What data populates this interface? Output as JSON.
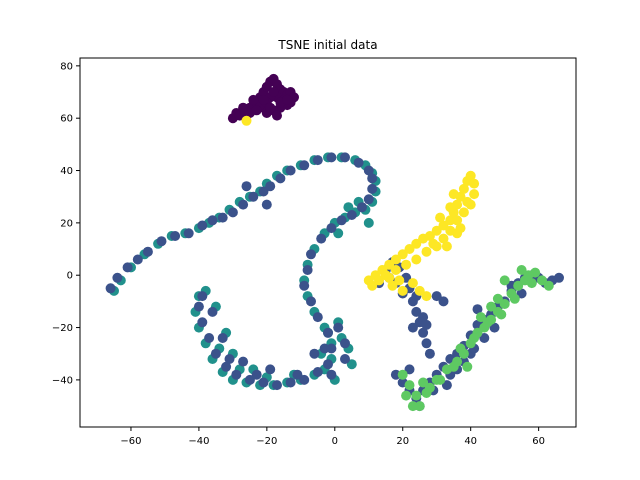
{
  "chart_data": {
    "type": "scatter",
    "title": "TSNE initial data",
    "xlabel": "",
    "ylabel": "",
    "xlim": [
      -75,
      71
    ],
    "ylim": [
      -58,
      83
    ],
    "xticks": [
      -60,
      -40,
      -20,
      0,
      20,
      40,
      60
    ],
    "yticks": [
      -40,
      -20,
      0,
      20,
      40,
      60,
      80
    ],
    "xtick_labels": [
      "−60",
      "−40",
      "−20",
      "0",
      "20",
      "40",
      "60"
    ],
    "ytick_labels": [
      "−40",
      "−20",
      "0",
      "20",
      "40",
      "60",
      "80"
    ],
    "grid": false,
    "series": [
      {
        "color": "#440154",
        "points": [
          [
            -30,
            60
          ],
          [
            -29,
            62
          ],
          [
            -27,
            63
          ],
          [
            -25,
            64
          ],
          [
            -24,
            65
          ],
          [
            -23,
            66
          ],
          [
            -22,
            68
          ],
          [
            -21,
            70
          ],
          [
            -20,
            72
          ],
          [
            -19,
            74
          ],
          [
            -18,
            75
          ],
          [
            -17,
            73
          ],
          [
            -16,
            71
          ],
          [
            -15,
            70
          ],
          [
            -14,
            69
          ],
          [
            -13,
            70
          ],
          [
            -12,
            68
          ],
          [
            -13,
            66
          ],
          [
            -14,
            65
          ],
          [
            -16,
            64
          ],
          [
            -18,
            63
          ],
          [
            -20,
            62
          ],
          [
            -21,
            64
          ],
          [
            -22,
            65
          ],
          [
            -26,
            61
          ],
          [
            -28,
            61
          ],
          [
            -25,
            62
          ],
          [
            -17,
            68
          ],
          [
            -19,
            68
          ],
          [
            -15,
            67
          ],
          [
            -24,
            67
          ],
          [
            -20,
            66
          ],
          [
            -18,
            70
          ],
          [
            -16,
            66
          ],
          [
            -14,
            67
          ],
          [
            -21,
            67
          ],
          [
            -23,
            63
          ],
          [
            -27,
            64
          ],
          [
            -19,
            64
          ],
          [
            -17,
            61
          ]
        ]
      },
      {
        "color": "#21918c",
        "points": [
          [
            -65,
            -6
          ],
          [
            -63,
            -2
          ],
          [
            -60,
            3
          ],
          [
            -56,
            8
          ],
          [
            -52,
            12
          ],
          [
            -48,
            15
          ],
          [
            -44,
            16
          ],
          [
            -40,
            18
          ],
          [
            -37,
            20
          ],
          [
            -34,
            22
          ],
          [
            -31,
            25
          ],
          [
            -28,
            28
          ],
          [
            -25,
            30
          ],
          [
            -22,
            32
          ],
          [
            -20,
            35
          ],
          [
            -17,
            38
          ],
          [
            -14,
            40
          ],
          [
            -10,
            42
          ],
          [
            -6,
            44
          ],
          [
            -2,
            45
          ],
          [
            2,
            45
          ],
          [
            6,
            44
          ],
          [
            9,
            42
          ],
          [
            11,
            39
          ],
          [
            12,
            36
          ],
          [
            12,
            32
          ],
          [
            11,
            28
          ],
          [
            9,
            25
          ],
          [
            6,
            24
          ],
          [
            3,
            22
          ],
          [
            0,
            20
          ],
          [
            -3,
            16
          ],
          [
            -6,
            10
          ],
          [
            -8,
            4
          ],
          [
            -9,
            -2
          ],
          [
            -8,
            -8
          ],
          [
            -6,
            -14
          ],
          [
            -3,
            -20
          ],
          [
            -1,
            -26
          ],
          [
            -1,
            -32
          ],
          [
            -3,
            -36
          ],
          [
            -6,
            -38
          ],
          [
            -10,
            -40
          ],
          [
            -14,
            -41
          ],
          [
            -18,
            -42
          ],
          [
            -22,
            -42
          ],
          [
            -26,
            -41
          ],
          [
            -30,
            -40
          ],
          [
            -33,
            -37
          ],
          [
            -36,
            -32
          ],
          [
            -38,
            -26
          ],
          [
            -40,
            -20
          ],
          [
            -41,
            -14
          ],
          [
            -40,
            -8
          ],
          [
            -38,
            -6
          ],
          [
            -35,
            -12
          ],
          [
            -32,
            -22
          ],
          [
            -30,
            -30
          ],
          [
            -24,
            -36
          ],
          [
            -12,
            -38
          ],
          [
            -4,
            -30
          ],
          [
            -2,
            -22
          ],
          [
            1,
            -18
          ],
          [
            2,
            -24
          ],
          [
            4,
            -28
          ],
          [
            5,
            -34
          ],
          [
            0,
            -40
          ],
          [
            -20,
            -39
          ],
          [
            -28,
            -36
          ],
          [
            -34,
            -28
          ],
          [
            4,
            26
          ],
          [
            7,
            28
          ],
          [
            10,
            20
          ],
          [
            1,
            16
          ]
        ]
      },
      {
        "color": "#3b528b",
        "points": [
          [
            -66,
            -5
          ],
          [
            -64,
            -1
          ],
          [
            -61,
            3
          ],
          [
            -58,
            6
          ],
          [
            -55,
            9
          ],
          [
            -51,
            13
          ],
          [
            -47,
            15
          ],
          [
            -43,
            16
          ],
          [
            -39,
            19
          ],
          [
            -36,
            21
          ],
          [
            -33,
            22
          ],
          [
            -30,
            24
          ],
          [
            -27,
            27
          ],
          [
            -24,
            30
          ],
          [
            -21,
            32
          ],
          [
            -19,
            34
          ],
          [
            -16,
            37
          ],
          [
            -13,
            40
          ],
          [
            -9,
            42
          ],
          [
            -5,
            44
          ],
          [
            -1,
            45
          ],
          [
            3,
            45
          ],
          [
            7,
            43
          ],
          [
            10,
            40
          ],
          [
            11,
            37
          ],
          [
            11,
            33
          ],
          [
            10,
            29
          ],
          [
            8,
            26
          ],
          [
            5,
            23
          ],
          [
            2,
            21
          ],
          [
            -1,
            18
          ],
          [
            -4,
            14
          ],
          [
            -7,
            8
          ],
          [
            -8,
            2
          ],
          [
            -9,
            -4
          ],
          [
            -7,
            -10
          ],
          [
            -5,
            -16
          ],
          [
            -2,
            -22
          ],
          [
            -1,
            -28
          ],
          [
            -2,
            -34
          ],
          [
            -5,
            -37
          ],
          [
            -9,
            -40
          ],
          [
            -13,
            -41
          ],
          [
            -17,
            -42
          ],
          [
            -21,
            -41
          ],
          [
            -25,
            -40
          ],
          [
            -29,
            -38
          ],
          [
            -32,
            -35
          ],
          [
            -35,
            -30
          ],
          [
            -37,
            -24
          ],
          [
            -39,
            -18
          ],
          [
            -40,
            -12
          ],
          [
            -39,
            -8
          ],
          [
            -36,
            -14
          ],
          [
            -33,
            -24
          ],
          [
            -31,
            -32
          ],
          [
            -23,
            -38
          ],
          [
            -11,
            -38
          ],
          [
            -3,
            -28
          ],
          [
            1,
            -20
          ],
          [
            3,
            -26
          ],
          [
            3,
            -32
          ],
          [
            -1,
            -38
          ],
          [
            -19,
            -36
          ],
          [
            -27,
            -33
          ],
          [
            -6,
            -30
          ],
          [
            -26,
            34
          ],
          [
            -20,
            27
          ],
          [
            13,
            -3
          ],
          [
            15,
            2
          ],
          [
            17,
            5
          ],
          [
            19,
            3
          ],
          [
            21,
            -1
          ],
          [
            22,
            -5
          ],
          [
            23,
            -10
          ],
          [
            24,
            -14
          ],
          [
            25,
            -18
          ],
          [
            26,
            -22
          ],
          [
            27,
            -26
          ],
          [
            28,
            -30
          ],
          [
            26,
            -16
          ],
          [
            24,
            -8
          ],
          [
            30,
            -8
          ],
          [
            32,
            -10
          ],
          [
            20,
            -7
          ],
          [
            18,
            -3
          ],
          [
            16,
            -1
          ],
          [
            23,
            -20
          ],
          [
            27,
            -19
          ],
          [
            18,
            -38
          ],
          [
            20,
            -41
          ],
          [
            22,
            -44
          ],
          [
            24,
            -47
          ],
          [
            26,
            -44
          ],
          [
            28,
            -41
          ],
          [
            30,
            -38
          ],
          [
            32,
            -35
          ],
          [
            34,
            -32
          ],
          [
            36,
            -30
          ],
          [
            38,
            -27
          ],
          [
            40,
            -23
          ],
          [
            42,
            -19
          ],
          [
            44,
            -17
          ],
          [
            46,
            -15
          ],
          [
            48,
            -12
          ],
          [
            50,
            -10
          ],
          [
            52,
            -6
          ],
          [
            54,
            -3
          ],
          [
            56,
            -1
          ],
          [
            58,
            0
          ],
          [
            60,
            -1
          ],
          [
            62,
            -3
          ],
          [
            64,
            -2
          ],
          [
            66,
            -1
          ],
          [
            52,
            -4
          ],
          [
            55,
            -7
          ],
          [
            47,
            -20
          ],
          [
            44,
            -24
          ],
          [
            40,
            -30
          ],
          [
            36,
            -36
          ],
          [
            33,
            -42
          ],
          [
            29,
            -44
          ],
          [
            34,
            -38
          ],
          [
            38,
            -33
          ],
          [
            42,
            -13
          ],
          [
            41,
            -28
          ],
          [
            22,
            -36
          ],
          [
            25,
            -50
          ]
        ]
      },
      {
        "color": "#5ec962",
        "points": [
          [
            20,
            -38
          ],
          [
            22,
            -42
          ],
          [
            24,
            -46
          ],
          [
            25,
            -50
          ],
          [
            27,
            -45
          ],
          [
            30,
            -40
          ],
          [
            33,
            -36
          ],
          [
            36,
            -33
          ],
          [
            38,
            -30
          ],
          [
            40,
            -26
          ],
          [
            42,
            -22
          ],
          [
            44,
            -20
          ],
          [
            46,
            -17
          ],
          [
            48,
            -14
          ],
          [
            50,
            -11
          ],
          [
            52,
            -7
          ],
          [
            54,
            -4
          ],
          [
            56,
            -2
          ],
          [
            57,
            0
          ],
          [
            59,
            1
          ],
          [
            61,
            -2
          ],
          [
            63,
            -4
          ],
          [
            50,
            -2
          ],
          [
            53,
            -9
          ],
          [
            45,
            -18
          ],
          [
            41,
            -24
          ],
          [
            37,
            -28
          ],
          [
            31,
            -40
          ],
          [
            28,
            -43
          ],
          [
            35,
            -35
          ],
          [
            26,
            -41
          ],
          [
            43,
            -16
          ],
          [
            48,
            -9
          ],
          [
            55,
            2
          ],
          [
            58,
            -3
          ],
          [
            21,
            -46
          ],
          [
            23,
            -50
          ],
          [
            46,
            -12
          ],
          [
            49,
            -15
          ],
          [
            39,
            -35
          ]
        ]
      },
      {
        "color": "#fde725",
        "points": [
          [
            -26,
            59
          ],
          [
            10,
            -2
          ],
          [
            12,
            0
          ],
          [
            14,
            2
          ],
          [
            16,
            4
          ],
          [
            18,
            6
          ],
          [
            20,
            8
          ],
          [
            22,
            10
          ],
          [
            24,
            12
          ],
          [
            26,
            14
          ],
          [
            28,
            15
          ],
          [
            30,
            17
          ],
          [
            32,
            19
          ],
          [
            34,
            21
          ],
          [
            35,
            24
          ],
          [
            36,
            27
          ],
          [
            37,
            30
          ],
          [
            38,
            33
          ],
          [
            39,
            36
          ],
          [
            40,
            38
          ],
          [
            41,
            35
          ],
          [
            41,
            31
          ],
          [
            40,
            27
          ],
          [
            38,
            24
          ],
          [
            36,
            21
          ],
          [
            34,
            17
          ],
          [
            32,
            14
          ],
          [
            30,
            11
          ],
          [
            27,
            9
          ],
          [
            24,
            6
          ],
          [
            21,
            4
          ],
          [
            18,
            2
          ],
          [
            15,
            0
          ],
          [
            13,
            -2
          ],
          [
            17,
            -4
          ],
          [
            20,
            -6
          ],
          [
            23,
            -3
          ],
          [
            25,
            -6
          ],
          [
            27,
            -8
          ],
          [
            11,
            -4
          ],
          [
            16,
            -1
          ],
          [
            19,
            -2
          ],
          [
            36,
            16
          ],
          [
            33,
            11
          ],
          [
            29,
            12
          ],
          [
            37,
            18
          ],
          [
            39,
            28
          ],
          [
            35,
            31
          ],
          [
            34,
            26
          ],
          [
            31,
            22
          ]
        ]
      }
    ]
  }
}
